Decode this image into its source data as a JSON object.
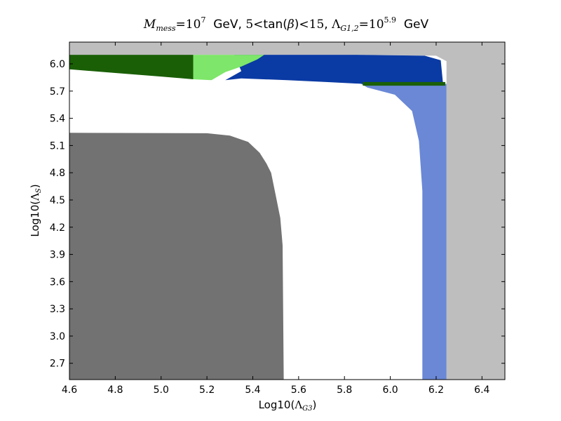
{
  "chart_data": {
    "type": "heatmap",
    "title": {
      "m_symbol": "M",
      "m_sub": "mess",
      "eq1": "=10",
      "m_exp": "7",
      "gev1": "  GeV, ",
      "tb_lo": "5",
      "lt1": "<",
      "tb_fn": "tan(",
      "beta": "β",
      "tb_close": ")",
      "lt2": "<",
      "tb_hi": "15",
      "comma": ", ",
      "lam_symbol": "Λ",
      "lam_sub": "G1,2",
      "eq2": "=10",
      "lam_exp": "5.9",
      "gev2": "  GeV"
    },
    "xlabel": {
      "prefix": "Log10(",
      "symbol": "Λ",
      "sub": "G3",
      "suffix": ")"
    },
    "ylabel": {
      "prefix": "Log10(",
      "symbol": "Λ",
      "sub": "S",
      "suffix": ")"
    },
    "xlim": [
      4.6,
      6.5
    ],
    "ylim": [
      2.52,
      6.24
    ],
    "xticks": [
      "4.6",
      "4.8",
      "5.0",
      "5.2",
      "5.4",
      "5.6",
      "5.8",
      "6.0",
      "6.2",
      "6.4"
    ],
    "yticks": [
      "2.7",
      "3.0",
      "3.3",
      "3.6",
      "3.9",
      "4.2",
      "4.5",
      "4.8",
      "5.1",
      "5.4",
      "5.7",
      "6.0"
    ],
    "regions": [
      {
        "color": "#bebebe",
        "polygon": [
          [
            4.6,
            6.24
          ],
          [
            6.5,
            6.24
          ],
          [
            6.5,
            2.52
          ],
          [
            6.245,
            2.52
          ],
          [
            6.245,
            6.03
          ],
          [
            6.2,
            6.09
          ],
          [
            5.8,
            6.1
          ],
          [
            4.6,
            6.1
          ]
        ]
      },
      {
        "color": "#6a88d6",
        "polygon": [
          [
            5.86,
            5.8
          ],
          [
            6.245,
            5.78
          ],
          [
            6.245,
            2.52
          ],
          [
            6.14,
            2.52
          ],
          [
            6.14,
            4.6
          ],
          [
            6.125,
            5.15
          ],
          [
            6.095,
            5.48
          ],
          [
            6.02,
            5.66
          ],
          [
            5.9,
            5.74
          ]
        ]
      },
      {
        "color": "#0a3aa4",
        "polygon": [
          [
            5.32,
            6.1
          ],
          [
            5.85,
            6.1
          ],
          [
            6.15,
            6.09
          ],
          [
            6.22,
            6.04
          ],
          [
            6.23,
            5.78
          ],
          [
            5.88,
            5.78
          ],
          [
            5.72,
            5.8
          ],
          [
            5.55,
            5.82
          ],
          [
            5.35,
            5.84
          ],
          [
            5.28,
            5.82
          ],
          [
            5.35,
            5.92
          ]
        ]
      },
      {
        "color": "#7ee66a",
        "polygon": [
          [
            5.14,
            6.1
          ],
          [
            5.45,
            6.1
          ],
          [
            5.42,
            6.05
          ],
          [
            5.35,
            5.97
          ],
          [
            5.28,
            5.91
          ],
          [
            5.22,
            5.82
          ],
          [
            5.14,
            5.83
          ]
        ]
      },
      {
        "color": "#1a5f06",
        "polygon": [
          [
            4.6,
            6.1
          ],
          [
            5.14,
            6.1
          ],
          [
            5.14,
            5.83
          ],
          [
            5.0,
            5.86
          ],
          [
            4.8,
            5.9
          ],
          [
            4.6,
            5.94
          ]
        ]
      },
      {
        "color": "#1a5f06",
        "polygon": [
          [
            5.88,
            5.8
          ],
          [
            6.24,
            5.8
          ],
          [
            6.24,
            5.76
          ],
          [
            5.88,
            5.76
          ]
        ]
      },
      {
        "color": "#727272",
        "polygon": [
          [
            4.6,
            5.24
          ],
          [
            5.2,
            5.235
          ],
          [
            5.3,
            5.21
          ],
          [
            5.38,
            5.14
          ],
          [
            5.43,
            5.02
          ],
          [
            5.46,
            4.9
          ],
          [
            5.48,
            4.8
          ],
          [
            5.5,
            4.55
          ],
          [
            5.52,
            4.3
          ],
          [
            5.53,
            4.0
          ],
          [
            5.535,
            2.52
          ],
          [
            4.6,
            2.52
          ]
        ]
      }
    ]
  }
}
